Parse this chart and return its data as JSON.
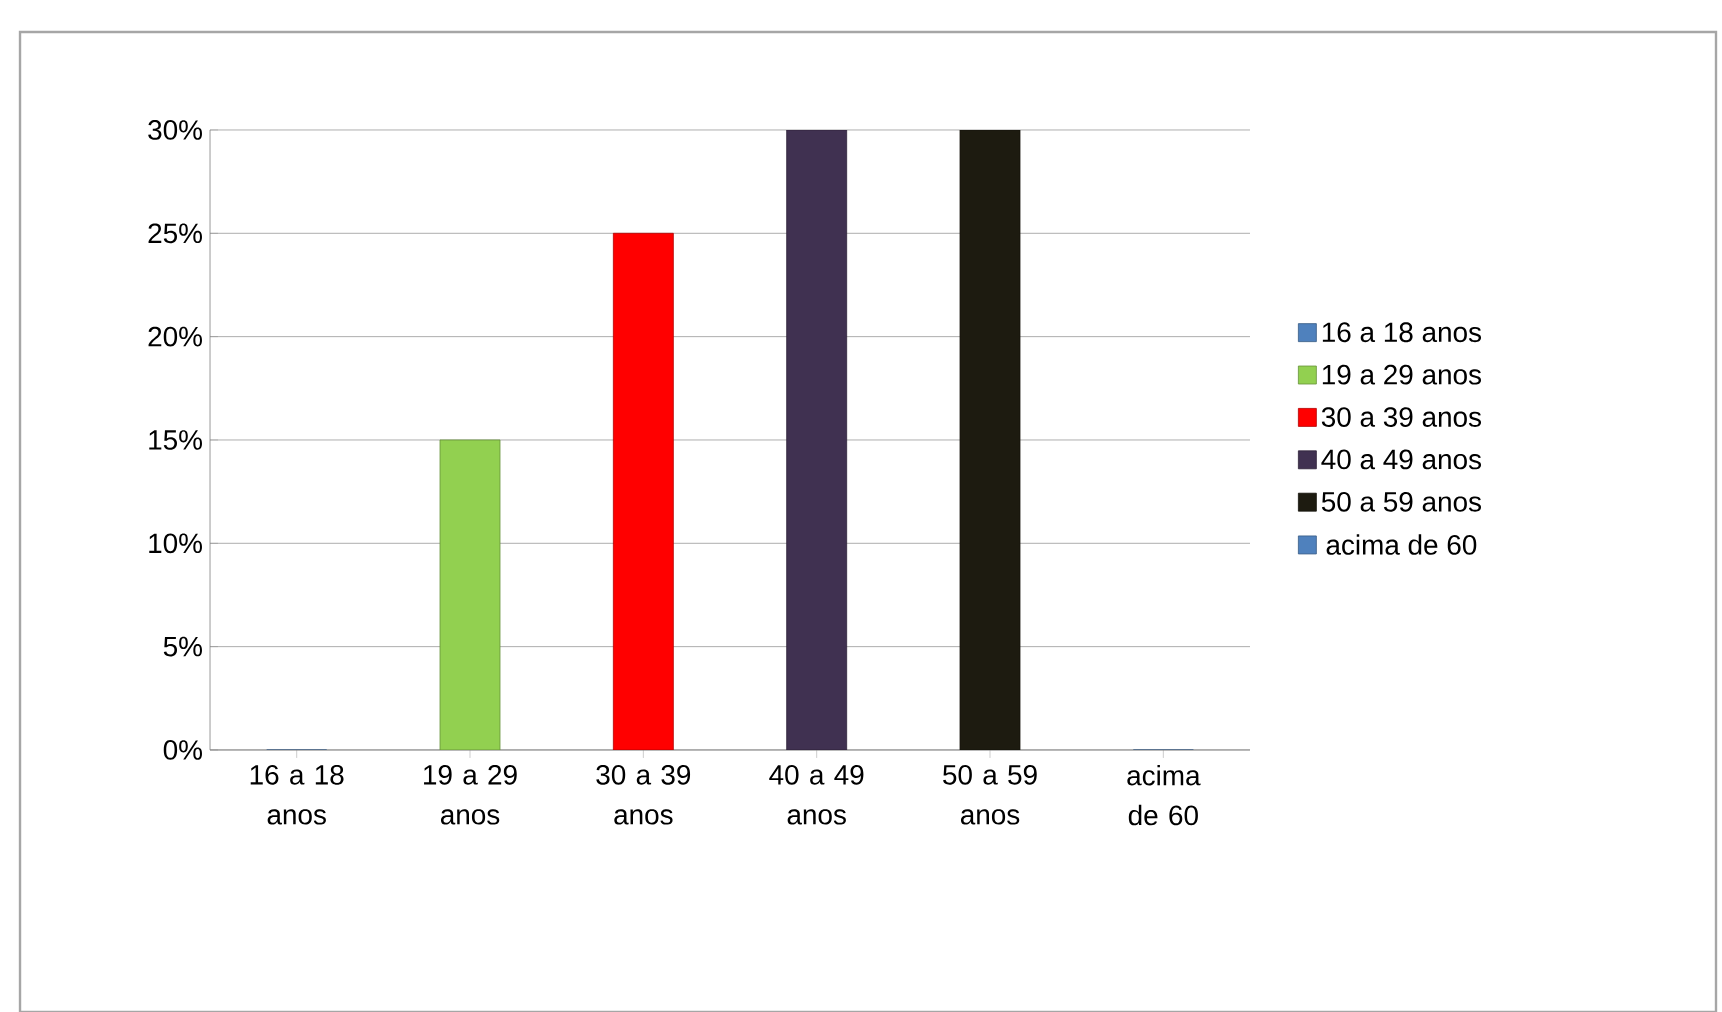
{
  "chart_data": {
    "type": "bar",
    "categories": [
      "16 a 18 anos",
      "19 a 29 anos",
      "30 a 39 anos",
      "40 a 49 anos",
      "50 a 59 anos",
      "acima de 60"
    ],
    "series": [
      {
        "name": "16 a 18 anos",
        "color": "#4f81bd",
        "values": [
          0,
          null,
          null,
          null,
          null,
          null
        ]
      },
      {
        "name": "19 a 29 anos",
        "color": "#92d050",
        "values": [
          null,
          15,
          null,
          null,
          null,
          null
        ]
      },
      {
        "name": "30 a 39 anos",
        "color": "#ff0000",
        "values": [
          null,
          null,
          25,
          null,
          null,
          null
        ]
      },
      {
        "name": "40 a 49 anos",
        "color": "#403151",
        "values": [
          null,
          null,
          null,
          30,
          null,
          null
        ]
      },
      {
        "name": "50 a 59 anos",
        "color": "#1d1b10",
        "values": [
          null,
          null,
          null,
          null,
          30,
          null
        ]
      },
      {
        "name": "acima de 60",
        "color": "#4f81bd",
        "values": [
          null,
          null,
          null,
          null,
          null,
          0
        ]
      }
    ],
    "ylim": [
      0,
      30
    ],
    "yticks": [
      {
        "value": 0,
        "label": "0%"
      },
      {
        "value": 5,
        "label": "5%"
      },
      {
        "value": 10,
        "label": "10%"
      },
      {
        "value": 15,
        "label": "15%"
      },
      {
        "value": 20,
        "label": "20%"
      },
      {
        "value": 25,
        "label": "25%"
      },
      {
        "value": 30,
        "label": "30%"
      }
    ],
    "grid": "y",
    "legend": "right"
  }
}
